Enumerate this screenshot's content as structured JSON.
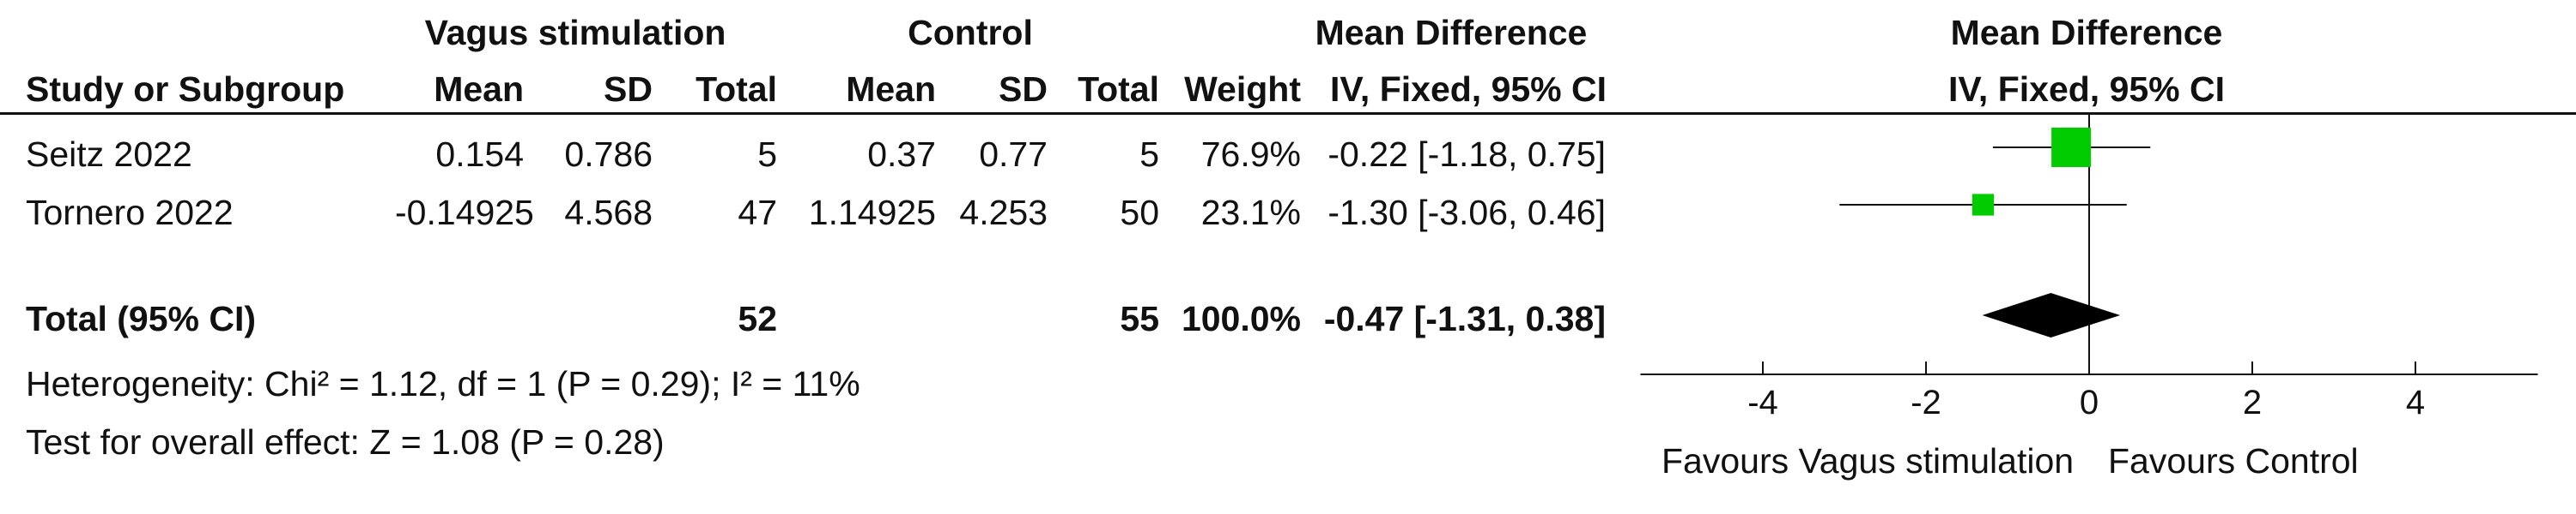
{
  "headers": {
    "group1": "Vagus stimulation",
    "group2": "Control",
    "md_text": "Mean Difference",
    "md_plot": "Mean Difference",
    "study": "Study or Subgroup",
    "mean1": "Mean",
    "sd1": "SD",
    "total1": "Total",
    "mean2": "Mean",
    "sd2": "SD",
    "total2": "Total",
    "weight": "Weight",
    "method_text": "IV, Fixed, 95% CI",
    "method_plot": "IV, Fixed, 95% CI"
  },
  "studies": [
    {
      "name": "Seitz 2022",
      "mean1": "0.154",
      "sd1": "0.786",
      "total1": "5",
      "mean2": "0.37",
      "sd2": "0.77",
      "total2": "5",
      "weight": "76.9%",
      "ci_text": "-0.22 [-1.18, 0.75]"
    },
    {
      "name": "Tornero 2022",
      "mean1": "-0.14925",
      "sd1": "4.568",
      "total1": "47",
      "mean2": "1.14925",
      "sd2": "4.253",
      "total2": "50",
      "weight": "23.1%",
      "ci_text": "-1.30 [-3.06, 0.46]"
    }
  ],
  "total": {
    "label": "Total (95% CI)",
    "total1": "52",
    "total2": "55",
    "weight": "100.0%",
    "ci_text": "-0.47 [-1.31, 0.38]"
  },
  "heterogeneity": "Heterogeneity: Chi² = 1.12, df = 1 (P = 0.29); I² = 11%",
  "overall_effect": "Test for overall effect: Z = 1.08 (P = 0.28)",
  "axis": {
    "favours_left": "Favours Vagus stimulation",
    "favours_right": "Favours Control"
  },
  "colors": {
    "square": "#00cc00",
    "diamond": "#000000",
    "line": "#111111"
  },
  "chart_data": {
    "type": "forest",
    "title": "Mean Difference",
    "xlim": [
      -5.5,
      5.5
    ],
    "ticks": [
      -4,
      -2,
      0,
      2,
      4
    ],
    "studies": [
      {
        "name": "Seitz 2022",
        "estimate": -0.22,
        "ci_low": -1.18,
        "ci_high": 0.75,
        "weight": 76.9
      },
      {
        "name": "Tornero 2022",
        "estimate": -1.3,
        "ci_low": -3.06,
        "ci_high": 0.46,
        "weight": 23.1
      }
    ],
    "pooled": {
      "name": "Total (95% CI)",
      "estimate": -0.47,
      "ci_low": -1.31,
      "ci_high": 0.38
    }
  }
}
